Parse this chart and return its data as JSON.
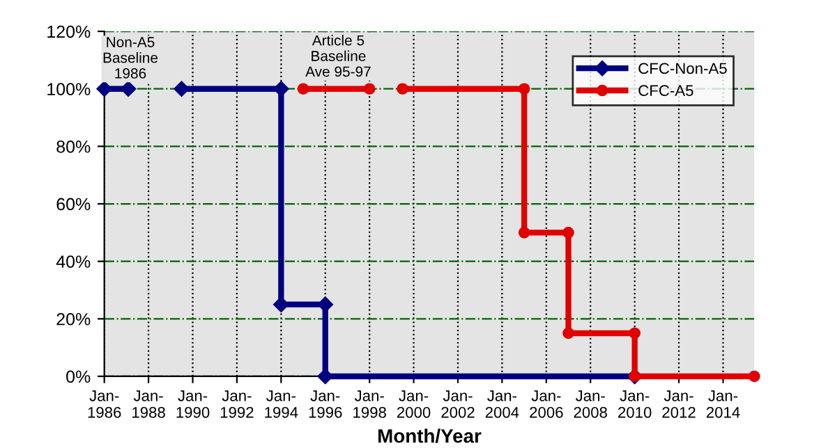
{
  "chart_data": {
    "type": "line",
    "xlabel": "Month/Year",
    "series": [
      {
        "name": "CFC-Non-A5",
        "color": "#000080",
        "marker": "diamond",
        "x": [
          "1986-01",
          "1987-02",
          "1988-01",
          "1989-07",
          "1994-01",
          "1994-01",
          "1996-01",
          "1996-01",
          "2010-01"
        ],
        "values": [
          100,
          100,
          null,
          100,
          100,
          25,
          25,
          0,
          0
        ]
      },
      {
        "name": "CFC-A5",
        "color": "#e00000",
        "marker": "circle",
        "x": [
          "1995-01",
          "1998-01",
          "1999-01",
          "1999-07",
          "2005-01",
          "2005-01",
          "2007-01",
          "2007-01",
          "2010-01",
          "2010-01",
          "2015-06"
        ],
        "values": [
          100,
          100,
          null,
          100,
          100,
          50,
          50,
          15,
          15,
          0,
          0
        ]
      }
    ],
    "annotations": [
      "Non-A5\nBaseline\n1986",
      "Article 5\nBaseline\nAve 95-97"
    ],
    "xlim": [
      "1986-01",
      "2015-06"
    ],
    "xticks": [
      {
        "value": "1986-01",
        "label": "Jan-\n1986"
      },
      {
        "value": "1988-01",
        "label": "Jan-\n1988"
      },
      {
        "value": "1990-01",
        "label": "Jan-\n1990"
      },
      {
        "value": "1992-01",
        "label": "Jan-\n1992"
      },
      {
        "value": "1994-01",
        "label": "Jan-\n1994"
      },
      {
        "value": "1996-01",
        "label": "Jan-\n1996"
      },
      {
        "value": "1998-01",
        "label": "Jan-\n1998"
      },
      {
        "value": "2000-01",
        "label": "Jan-\n2000"
      },
      {
        "value": "2002-01",
        "label": "Jan-\n2002"
      },
      {
        "value": "2004-01",
        "label": "Jan-\n2004"
      },
      {
        "value": "2006-01",
        "label": "Jan-\n2006"
      },
      {
        "value": "2008-01",
        "label": "Jan-\n2008"
      },
      {
        "value": "2010-01",
        "label": "Jan-\n2010"
      },
      {
        "value": "2012-01",
        "label": "Jan-\n2012"
      },
      {
        "value": "2014-01",
        "label": "Jan-\n2014"
      }
    ],
    "ylim": [
      0,
      120
    ],
    "yticks": [
      {
        "value": 0,
        "label": "0%"
      },
      {
        "value": 20,
        "label": "20%"
      },
      {
        "value": 40,
        "label": "40%"
      },
      {
        "value": 60,
        "label": "60%"
      },
      {
        "value": 80,
        "label": "80%"
      },
      {
        "value": 100,
        "label": "100%"
      },
      {
        "value": 120,
        "label": "120%"
      }
    ],
    "grid": true,
    "legend": "top right",
    "line_style": "solid"
  }
}
